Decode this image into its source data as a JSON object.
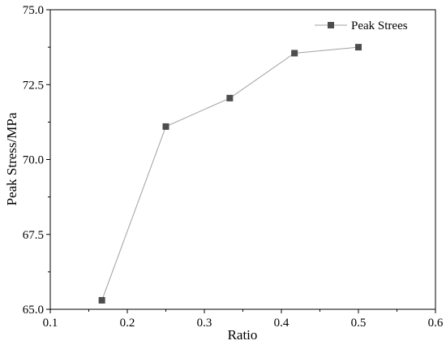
{
  "chart_data": {
    "type": "line",
    "title": "",
    "xlabel": "Ratio",
    "ylabel": "Peak Stress/MPa",
    "xlim": [
      0.1,
      0.6
    ],
    "ylim": [
      65.0,
      75.0
    ],
    "xticks": [
      0.1,
      0.2,
      0.3,
      0.4,
      0.5,
      0.6
    ],
    "yticks": [
      65.0,
      67.5,
      70.0,
      72.5,
      75.0
    ],
    "xtick_labels": [
      "0.1",
      "0.2",
      "0.3",
      "0.4",
      "0.5",
      "0.6"
    ],
    "ytick_labels": [
      "65.0",
      "67.5",
      "70.0",
      "72.5",
      "75.0"
    ],
    "grid": false,
    "legend": {
      "position": "top-right"
    },
    "series": [
      {
        "name": "Peak Strees",
        "marker": "square",
        "line_color": "#a0a0a0",
        "marker_color": "#4d4d4d",
        "x": [
          0.167,
          0.25,
          0.333,
          0.417,
          0.5
        ],
        "y": [
          65.3,
          71.1,
          72.05,
          73.55,
          73.75
        ]
      }
    ]
  }
}
